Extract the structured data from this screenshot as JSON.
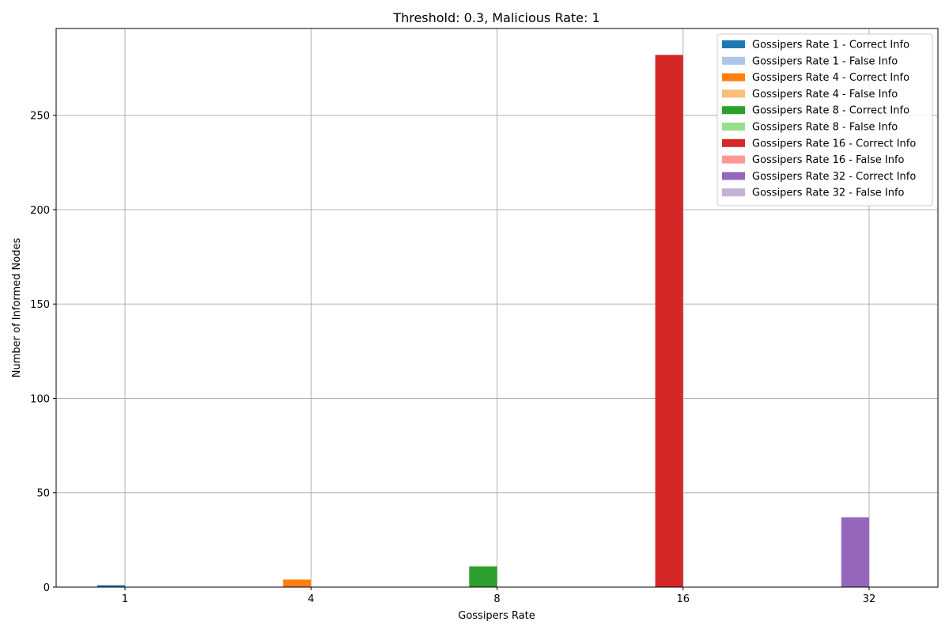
{
  "chart_data": {
    "type": "bar",
    "title": "Threshold: 0.3, Malicious Rate: 1",
    "xlabel": "Gossipers Rate",
    "ylabel": "Number of Informed Nodes",
    "categories": [
      "1",
      "4",
      "8",
      "16",
      "32"
    ],
    "ylim": [
      0,
      296
    ],
    "yticks": [
      0,
      50,
      100,
      150,
      200,
      250
    ],
    "grid": true,
    "legend_position": "top-right",
    "series": [
      {
        "name": "Gossipers Rate 1 - Correct Info",
        "color": "#1f77b4",
        "category": "1",
        "kind": "correct",
        "value": 1
      },
      {
        "name": "Gossipers Rate 1 - False Info",
        "color": "#aec7e8",
        "category": "1",
        "kind": "false",
        "value": 0
      },
      {
        "name": "Gossipers Rate 4 - Correct Info",
        "color": "#ff7f0e",
        "category": "4",
        "kind": "correct",
        "value": 4
      },
      {
        "name": "Gossipers Rate 4 - False Info",
        "color": "#ffbb78",
        "category": "4",
        "kind": "false",
        "value": 0
      },
      {
        "name": "Gossipers Rate 8 - Correct Info",
        "color": "#2ca02c",
        "category": "8",
        "kind": "correct",
        "value": 11
      },
      {
        "name": "Gossipers Rate 8 - False Info",
        "color": "#98df8a",
        "category": "8",
        "kind": "false",
        "value": 0
      },
      {
        "name": "Gossipers Rate 16 - Correct Info",
        "color": "#d62728",
        "category": "16",
        "kind": "correct",
        "value": 282
      },
      {
        "name": "Gossipers Rate 16 - False Info",
        "color": "#ff9896",
        "category": "16",
        "kind": "false",
        "value": 0
      },
      {
        "name": "Gossipers Rate 32 - Correct Info",
        "color": "#9467bd",
        "category": "32",
        "kind": "correct",
        "value": 37
      },
      {
        "name": "Gossipers Rate 32 - False Info",
        "color": "#c5b0d5",
        "category": "32",
        "kind": "false",
        "value": 0
      }
    ]
  }
}
